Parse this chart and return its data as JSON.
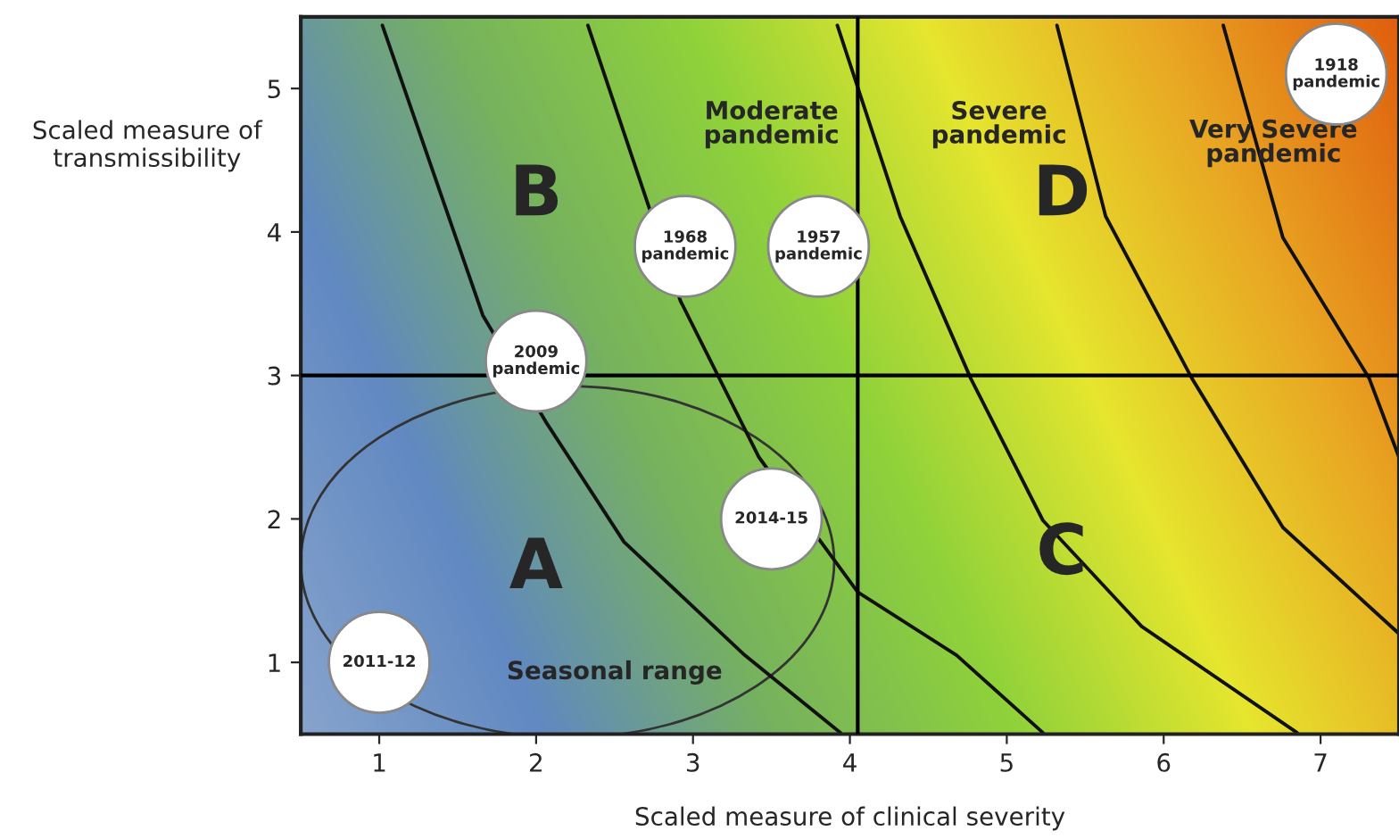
{
  "chart_data": {
    "type": "scatter",
    "xlabel": "Scaled measure of clinical severity",
    "ylabel": "Scaled measure of\ntransmissibility",
    "xlim": [
      0.5,
      7.5
    ],
    "ylim": [
      0.5,
      5.5
    ],
    "xticks": [
      1,
      2,
      3,
      4,
      5,
      6,
      7
    ],
    "yticks": [
      1,
      2,
      3,
      4,
      5
    ],
    "grid": false,
    "series": [
      {
        "marker": "circle",
        "color": "#ffffff",
        "x": [
          7.1,
          2.95,
          3.8,
          2.0,
          3.5,
          1.0
        ],
        "values": [
          5.1,
          3.9,
          3.9,
          3.1,
          2.0,
          1.0
        ]
      },
      {
        "type": "line",
        "color": "#111111",
        "x": [
          1.02,
          1.66,
          2.06,
          2.56,
          3.33,
          3.94
        ],
        "values": [
          5.44,
          3.42,
          2.68,
          1.84,
          1.05,
          0.51
        ]
      },
      {
        "type": "line",
        "color": "#111111",
        "x": [
          2.33,
          2.92,
          3.42,
          4.05,
          4.68,
          5.23
        ],
        "values": [
          5.44,
          3.52,
          2.43,
          1.49,
          1.05,
          0.51
        ]
      },
      {
        "type": "line",
        "color": "#111111",
        "x": [
          3.92,
          4.32,
          4.77,
          5.23,
          5.86,
          6.85
        ],
        "values": [
          5.44,
          4.11,
          2.98,
          1.99,
          1.25,
          0.51
        ]
      },
      {
        "type": "line",
        "color": "#111111",
        "x": [
          5.32,
          5.63,
          6.18,
          6.76,
          7.5
        ],
        "values": [
          5.44,
          4.11,
          2.98,
          1.94,
          1.2
        ]
      },
      {
        "type": "line",
        "color": "#111111",
        "x": [
          6.38,
          6.76,
          7.31,
          7.5
        ],
        "values": [
          5.44,
          3.96,
          2.98,
          2.43
        ]
      }
    ],
    "ref_lines": [
      {
        "axis": "y",
        "value": 3,
        "color": "#000000"
      },
      {
        "axis": "x",
        "value": 4.05,
        "color": "#000000"
      }
    ],
    "annotations": [
      {
        "text": "1918\npandemic",
        "x": 7.1,
        "y": 5.1
      },
      {
        "text": "1968\npandemic",
        "x": 2.95,
        "y": 3.9
      },
      {
        "text": "1957\npandemic",
        "x": 3.8,
        "y": 3.9
      },
      {
        "text": "2009\npandemic",
        "x": 2.0,
        "y": 3.1
      },
      {
        "text": "2014-15",
        "x": 3.5,
        "y": 2.0
      },
      {
        "text": "2011-12",
        "x": 1.0,
        "y": 1.0
      },
      "A",
      "B",
      "C",
      "D",
      "Moderate\npandemic",
      "Severe\npandemic",
      "Very Severe\npandemic",
      "Seasonal range"
    ]
  }
}
